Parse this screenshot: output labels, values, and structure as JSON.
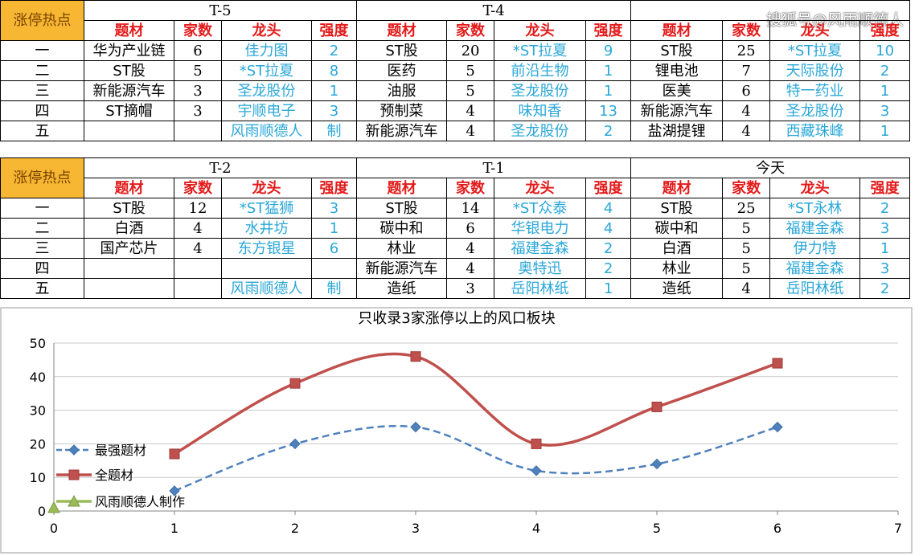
{
  "watermark": "搜狐号@风雨顺德人",
  "hot_label": "涨停热点",
  "col_headers": {
    "topic": "题材",
    "count": "家数",
    "leader": "龙头",
    "strength": "强度"
  },
  "ranks": [
    "一",
    "二",
    "三",
    "四",
    "五"
  ],
  "table1": {
    "groups": [
      {
        "period": "T-5",
        "rows": [
          {
            "topic": "华为产业链",
            "count": "6",
            "leader": "佳力图",
            "strength": "2"
          },
          {
            "topic": "ST股",
            "count": "5",
            "leader": "*ST拉夏",
            "strength": "8"
          },
          {
            "topic": "新能源汽车",
            "count": "3",
            "leader": "圣龙股份",
            "strength": "1"
          },
          {
            "topic": "ST摘帽",
            "count": "3",
            "leader": "宇顺电子",
            "strength": "3"
          },
          {
            "topic": "",
            "count": "",
            "leader": "风雨顺德人",
            "strength": "制"
          }
        ]
      },
      {
        "period": "T-4",
        "rows": [
          {
            "topic": "ST股",
            "count": "20",
            "leader": "*ST拉夏",
            "strength": "9"
          },
          {
            "topic": "医药",
            "count": "5",
            "leader": "前沿生物",
            "strength": "1"
          },
          {
            "topic": "油服",
            "count": "5",
            "leader": "圣龙股份",
            "strength": "1"
          },
          {
            "topic": "预制菜",
            "count": "4",
            "leader": "味知香",
            "strength": "13"
          },
          {
            "topic": "新能源汽车",
            "count": "4",
            "leader": "圣龙股份",
            "strength": "2"
          }
        ]
      },
      {
        "period": "",
        "rows": [
          {
            "topic": "ST股",
            "count": "25",
            "leader": "*ST拉夏",
            "strength": "10"
          },
          {
            "topic": "锂电池",
            "count": "7",
            "leader": "天际股份",
            "strength": "2"
          },
          {
            "topic": "医美",
            "count": "6",
            "leader": "特一药业",
            "strength": "1"
          },
          {
            "topic": "新能源汽车",
            "count": "4",
            "leader": "圣龙股份",
            "strength": "3"
          },
          {
            "topic": "盐湖提锂",
            "count": "4",
            "leader": "西藏珠峰",
            "strength": "1"
          }
        ]
      }
    ]
  },
  "table2": {
    "groups": [
      {
        "period": "T-2",
        "rows": [
          {
            "topic": "ST股",
            "count": "12",
            "leader": "*ST猛狮",
            "strength": "3"
          },
          {
            "topic": "白酒",
            "count": "4",
            "leader": "水井坊",
            "strength": "1"
          },
          {
            "topic": "国产芯片",
            "count": "4",
            "leader": "东方银星",
            "strength": "6"
          },
          {
            "topic": "",
            "count": "",
            "leader": "",
            "strength": ""
          },
          {
            "topic": "",
            "count": "",
            "leader": "风雨顺德人",
            "strength": "制"
          }
        ]
      },
      {
        "period": "T-1",
        "rows": [
          {
            "topic": "ST股",
            "count": "14",
            "leader": "*ST众泰",
            "strength": "4"
          },
          {
            "topic": "碳中和",
            "count": "6",
            "leader": "华银电力",
            "strength": "4"
          },
          {
            "topic": "林业",
            "count": "4",
            "leader": "福建金森",
            "strength": "2"
          },
          {
            "topic": "新能源汽车",
            "count": "4",
            "leader": "奥特迅",
            "strength": "2"
          },
          {
            "topic": "造纸",
            "count": "3",
            "leader": "岳阳林纸",
            "strength": "1"
          }
        ]
      },
      {
        "period": "今天",
        "rows": [
          {
            "topic": "ST股",
            "count": "25",
            "leader": "*ST永林",
            "strength": "2"
          },
          {
            "topic": "碳中和",
            "count": "5",
            "leader": "福建金森",
            "strength": "3"
          },
          {
            "topic": "白酒",
            "count": "5",
            "leader": "伊力特",
            "strength": "1"
          },
          {
            "topic": "林业",
            "count": "5",
            "leader": "福建金森",
            "strength": "3"
          },
          {
            "topic": "造纸",
            "count": "4",
            "leader": "岳阳林纸",
            "strength": "2"
          }
        ]
      }
    ]
  },
  "chart_data": {
    "type": "scatter",
    "title": "只收录3家涨停以上的风口板块",
    "xlabel": "",
    "ylabel": "",
    "xlim": [
      0,
      7
    ],
    "ylim": [
      0,
      50
    ],
    "x_ticks": [
      0,
      1,
      2,
      3,
      4,
      5,
      6,
      7
    ],
    "y_ticks": [
      0,
      10,
      20,
      30,
      40,
      50
    ],
    "grid": true,
    "smooth": true,
    "legend_position": "left",
    "series": [
      {
        "name": "最强题材",
        "color": "#4f81bd",
        "style": "dashed",
        "marker": "diamond",
        "x": [
          1,
          2,
          3,
          4,
          5,
          6
        ],
        "y": [
          6,
          20,
          25,
          12,
          14,
          25
        ]
      },
      {
        "name": "全题材",
        "color": "#c0504d",
        "style": "solid",
        "marker": "square",
        "x": [
          1,
          2,
          3,
          4,
          5,
          6
        ],
        "y": [
          17,
          38,
          46,
          20,
          31,
          44
        ]
      },
      {
        "name": "风雨顺德人制作",
        "color": "#9bbb59",
        "style": "solid",
        "marker": "triangle",
        "x": [
          0
        ],
        "y": [
          1
        ]
      }
    ]
  }
}
